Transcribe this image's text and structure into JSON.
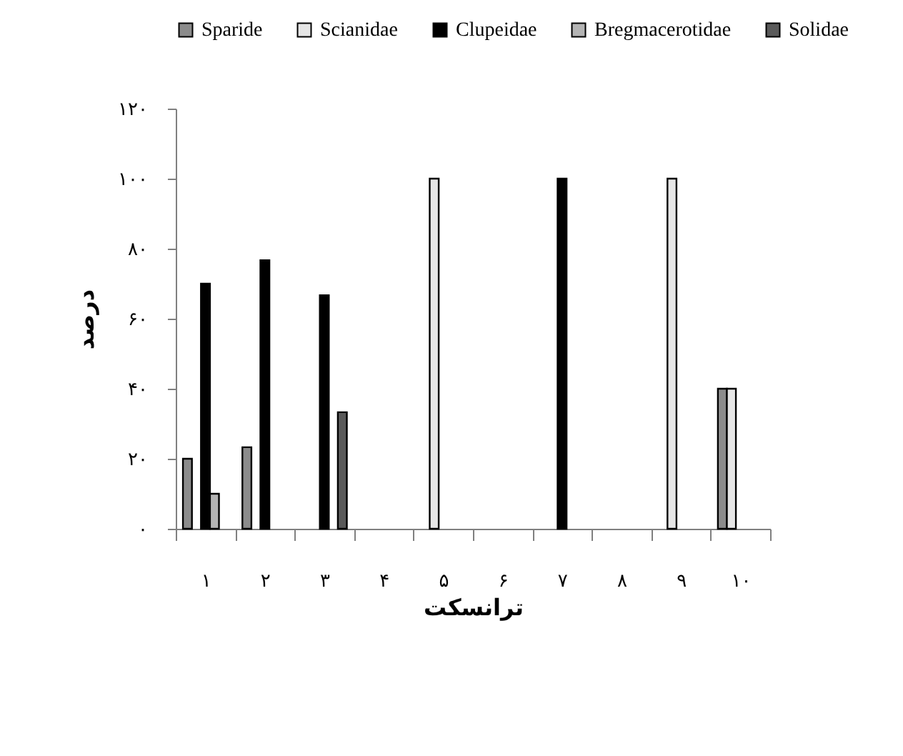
{
  "chart_data": {
    "type": "bar",
    "xlabel": "ترانسکت",
    "ylabel": "درصد",
    "categories": [
      "۱",
      "۲",
      "۳",
      "۴",
      "۵",
      "۶",
      "۷",
      "۸",
      "۹",
      "۱۰"
    ],
    "series": [
      {
        "name": "Sparide",
        "color": "#8c8c8c",
        "values": [
          20,
          23.3,
          null,
          null,
          null,
          null,
          null,
          null,
          null,
          40
        ]
      },
      {
        "name": "Scianidae",
        "color": "#e6e6e6",
        "values": [
          null,
          null,
          null,
          null,
          100,
          null,
          null,
          null,
          100,
          40
        ]
      },
      {
        "name": "Clupeidae",
        "color": "#000000",
        "values": [
          70,
          76.7,
          66.7,
          null,
          null,
          null,
          100,
          null,
          null,
          null
        ]
      },
      {
        "name": "Bregmacerotidae",
        "color": "#b4b4b4",
        "values": [
          10,
          null,
          null,
          null,
          null,
          null,
          null,
          null,
          null,
          null
        ]
      },
      {
        "name": "Solidae",
        "color": "#5a5a5a",
        "values": [
          null,
          null,
          33.3,
          null,
          null,
          null,
          null,
          null,
          null,
          null
        ]
      }
    ],
    "ylim": [
      0,
      120
    ],
    "yticks": [
      {
        "value": 0,
        "label": "۰"
      },
      {
        "value": 20,
        "label": "۲۰"
      },
      {
        "value": 40,
        "label": "۴۰"
      },
      {
        "value": 60,
        "label": "۶۰"
      },
      {
        "value": 80,
        "label": "۸۰"
      },
      {
        "value": 100,
        "label": "۱۰۰"
      },
      {
        "value": 120,
        "label": "۱۲۰"
      }
    ],
    "grid": false,
    "legend": "top"
  }
}
